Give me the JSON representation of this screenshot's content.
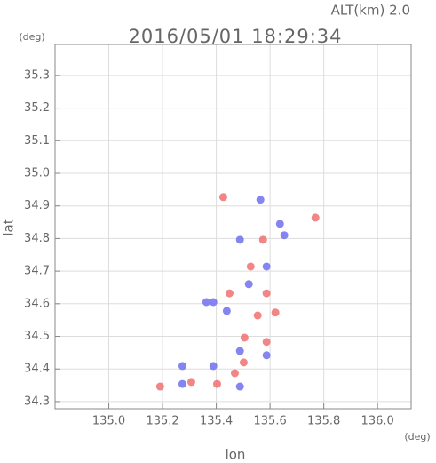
{
  "chart_data": {
    "type": "scatter",
    "title": "2016/05/01 18:29:34",
    "altitude_label": "ALT(km) 2.0",
    "y_unit": "(deg)",
    "x_unit": "(deg)",
    "x_label": "lon",
    "y_label": "lat",
    "xlim": [
      134.8,
      136.125
    ],
    "ylim": [
      34.278,
      35.395
    ],
    "xticks": [
      {
        "value": 135.0,
        "label": "135.0"
      },
      135.2,
      135.4,
      135.6,
      135.8,
      {
        "value": 136.0,
        "label": "136.0"
      }
    ],
    "yticks": [
      34.3,
      34.4,
      34.5,
      34.6,
      34.7,
      34.8,
      34.9,
      {
        "value": 35.0,
        "label": "35.0"
      },
      35.1,
      35.2,
      35.3
    ],
    "grid": true,
    "series": [
      {
        "color": "#f07070",
        "x": [
          135.769,
          135.528,
          135.449,
          135.587,
          135.554,
          135.505,
          135.587,
          135.469,
          135.403,
          135.307,
          135.191,
          135.426,
          135.574,
          135.502,
          135.62
        ],
        "y": [
          34.864,
          34.714,
          34.632,
          34.632,
          34.564,
          34.496,
          34.483,
          34.387,
          34.354,
          34.36,
          34.346,
          34.927,
          34.796,
          34.42,
          34.573
        ]
      },
      {
        "color": "#7070f0",
        "x": [
          135.389,
          135.363,
          135.274,
          135.389,
          135.488,
          135.587,
          135.637,
          135.653,
          135.521,
          135.439,
          135.488,
          135.274,
          135.587,
          135.488,
          135.564
        ],
        "y": [
          34.605,
          34.605,
          34.409,
          34.409,
          34.455,
          34.442,
          34.845,
          34.81,
          34.66,
          34.578,
          34.346,
          34.354,
          34.714,
          34.796,
          34.919
        ]
      }
    ]
  }
}
